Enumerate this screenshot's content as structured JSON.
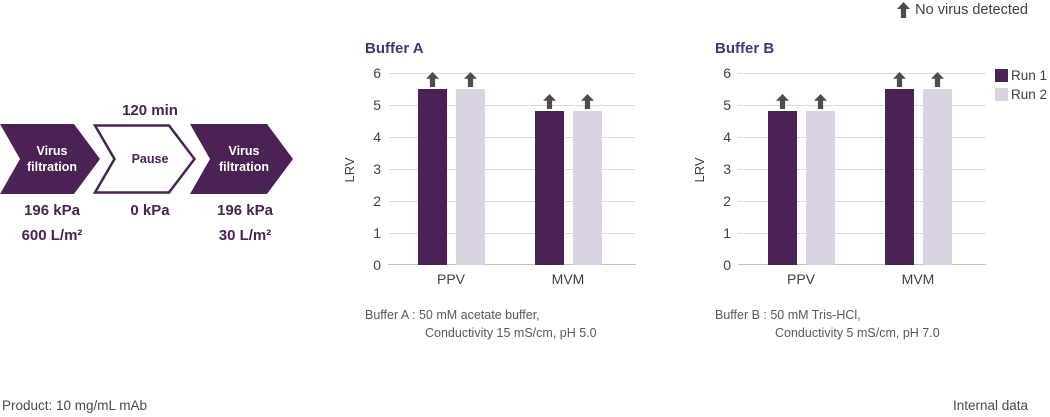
{
  "annotation": {
    "label": "No virus detected"
  },
  "flow": {
    "steps": [
      {
        "label_line1": "Virus",
        "label_line2": "filtration",
        "pressure": "196 kPa",
        "flux": "600 L/m²"
      },
      {
        "label": "Pause",
        "duration": "120 min",
        "pressure": "0 kPa"
      },
      {
        "label_line1": "Virus",
        "label_line2": "filtration",
        "pressure": "196 kPa",
        "flux": "30 L/m²"
      }
    ]
  },
  "chart_data": [
    {
      "type": "bar",
      "title": "Buffer A",
      "categories": [
        "PPV",
        "MVM"
      ],
      "series": [
        {
          "name": "Run 1",
          "values": [
            5.5,
            4.8
          ]
        },
        {
          "name": "Run 2",
          "values": [
            5.5,
            4.8
          ]
        }
      ],
      "ylabel": "LRV",
      "ylim": [
        0,
        6
      ],
      "yticks": [
        0,
        1,
        2,
        3,
        4,
        5,
        6
      ],
      "grid": true,
      "bar_annotations": "up arrow above every bar = no virus detected",
      "caption_line1": "Buffer A : 50 mM acetate buffer,",
      "caption_line2": "Conductivity 15 mS/cm, pH 5.0"
    },
    {
      "type": "bar",
      "title": "Buffer B",
      "categories": [
        "PPV",
        "MVM"
      ],
      "series": [
        {
          "name": "Run 1",
          "values": [
            4.8,
            5.5
          ]
        },
        {
          "name": "Run 2",
          "values": [
            4.8,
            5.5
          ]
        }
      ],
      "ylabel": "LRV",
      "ylim": [
        0,
        6
      ],
      "yticks": [
        0,
        1,
        2,
        3,
        4,
        5,
        6
      ],
      "grid": true,
      "bar_annotations": "up arrow above every bar = no virus detected",
      "caption_line1": "Buffer B : 50 mM Tris-HCl,",
      "caption_line2": "Conductivity 5 mS/cm, pH 7.0"
    }
  ],
  "legend": {
    "position": "right",
    "items": [
      {
        "label": "Run 1",
        "color": "#4A2254"
      },
      {
        "label": "Run 2",
        "color": "#D9D2E2"
      }
    ]
  },
  "footer": {
    "left": "Product: 10 mg/mL mAb",
    "right": "Internal data"
  },
  "colors": {
    "run1": "#4A2254",
    "run2": "#D9D2E2",
    "flow_purple": "#4A2254",
    "chart_title": "#403A74",
    "axis_text": "#404040",
    "caption_text": "#595959",
    "arrow": "#4D4D4D",
    "gridline": "#DCDCDC",
    "baseline": "#C3C3C3"
  }
}
